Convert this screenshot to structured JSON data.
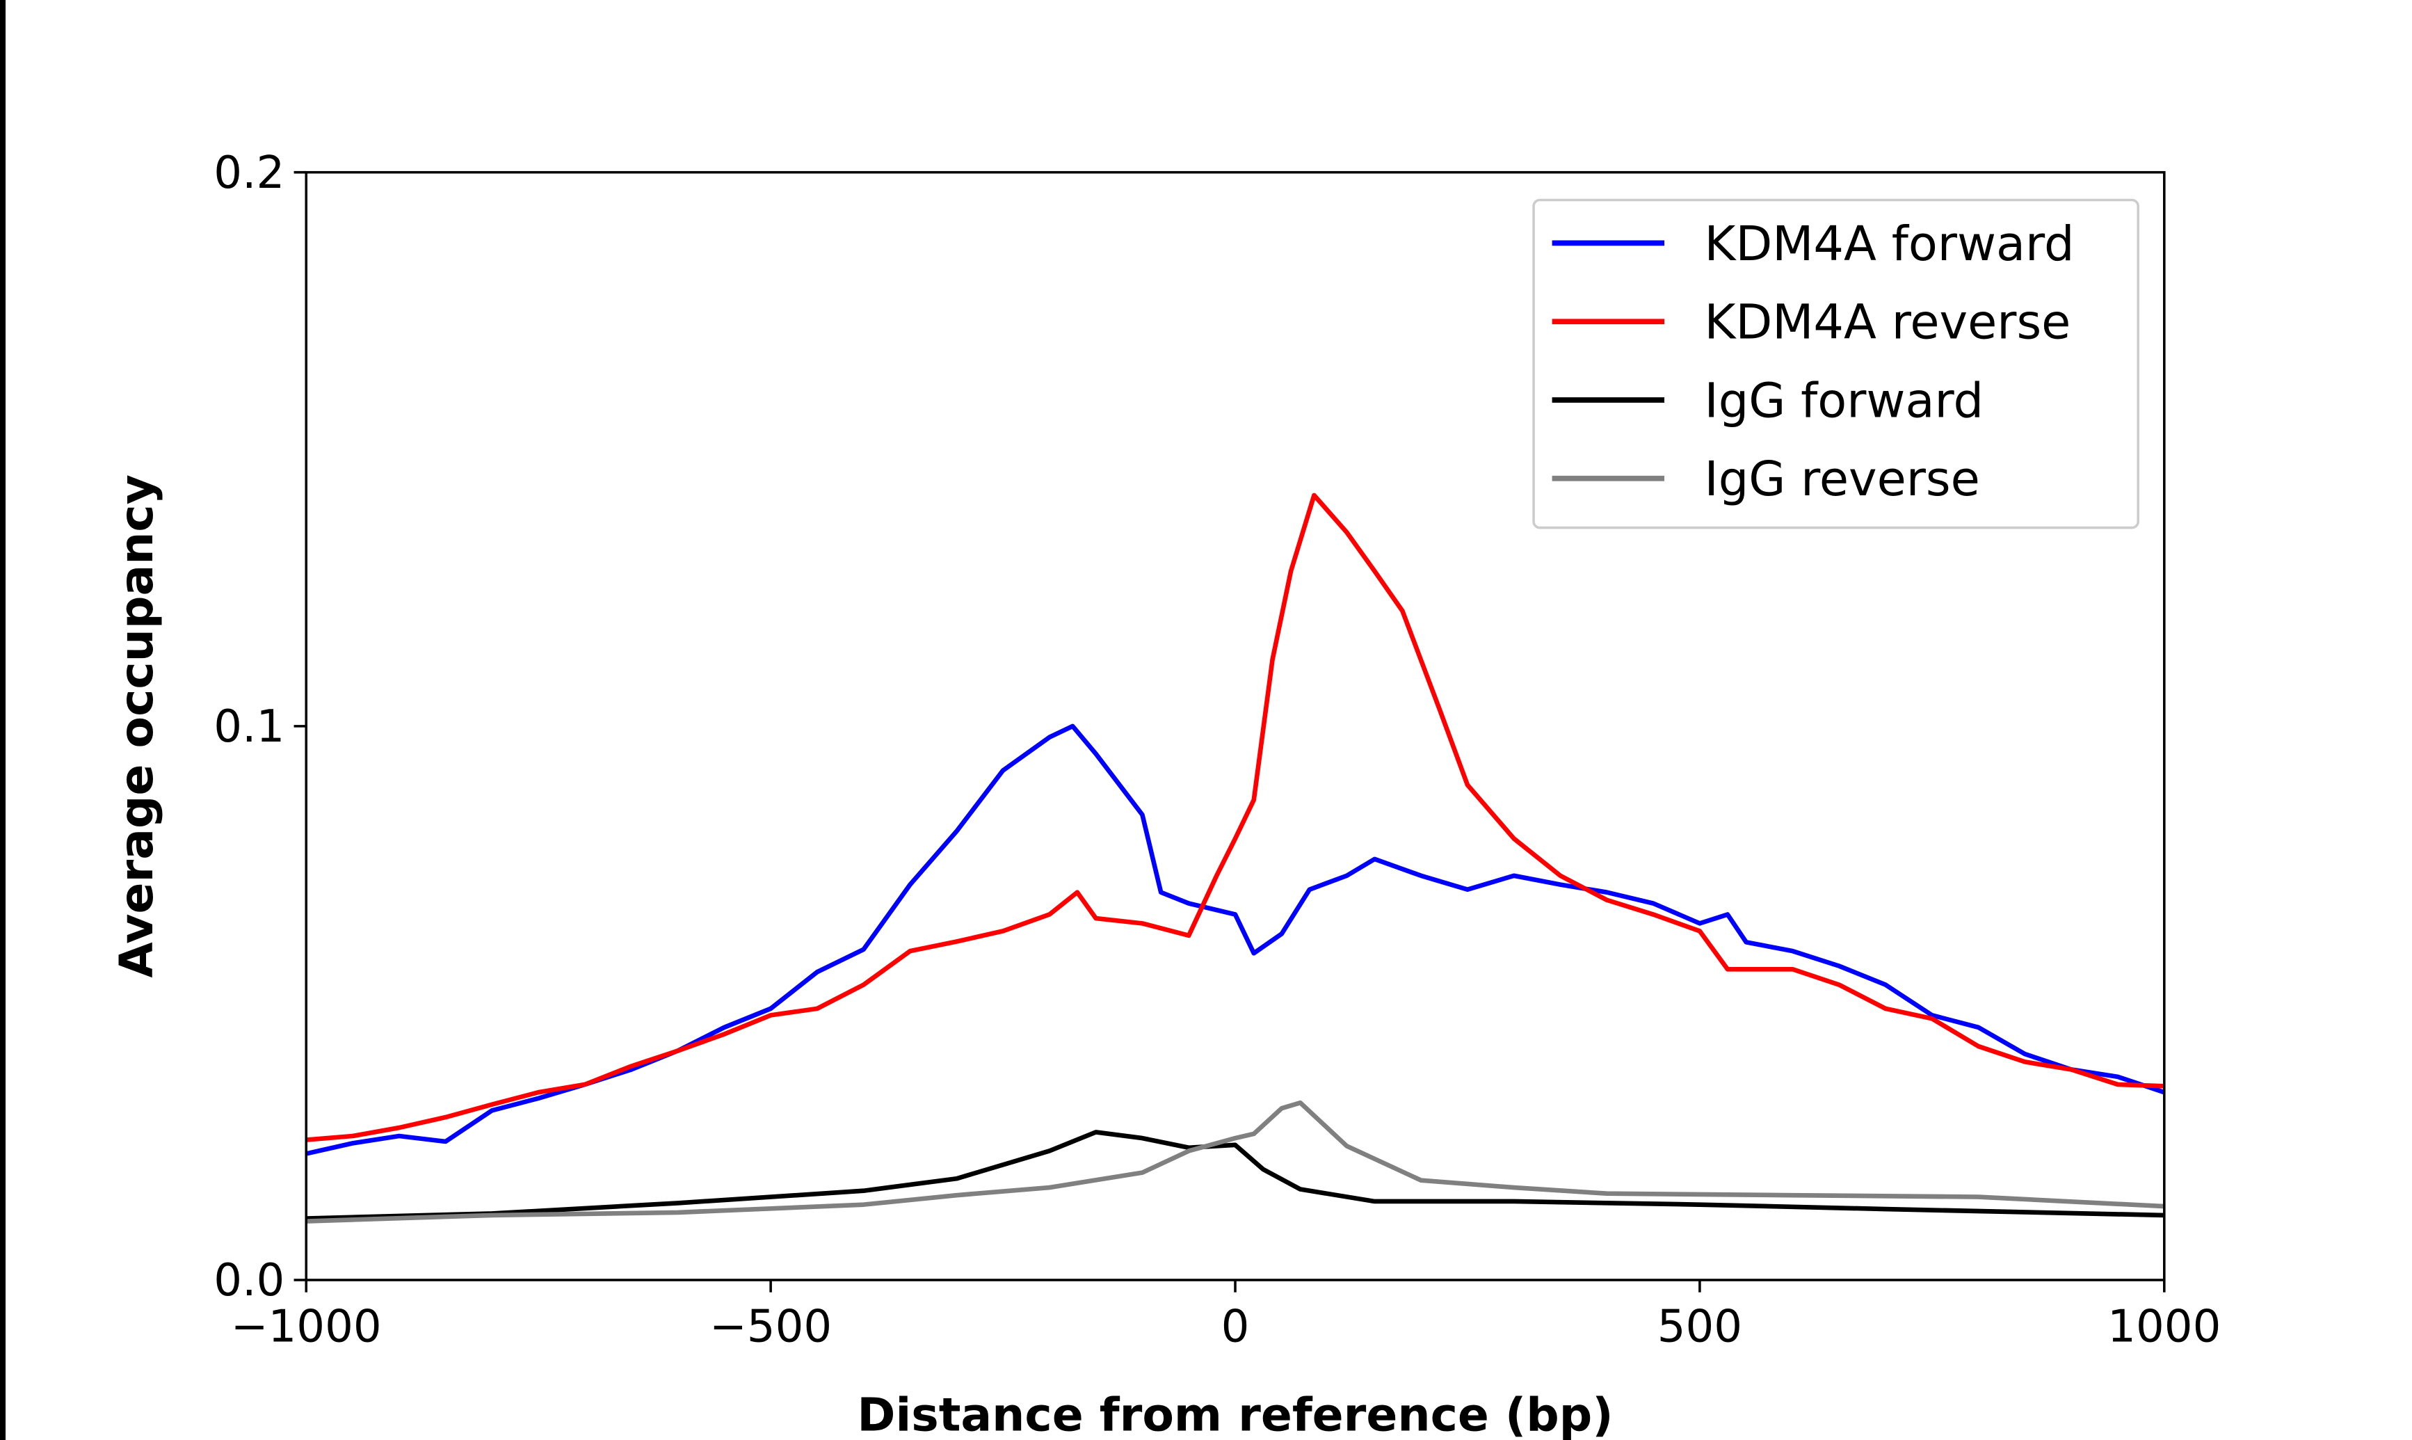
{
  "chart_data": {
    "type": "line",
    "title": "",
    "xlabel": "Distance from reference (bp)",
    "ylabel": "Average occupancy",
    "xlim": [
      -1000,
      1000
    ],
    "ylim": [
      0.0,
      0.2
    ],
    "xticks": [
      "−1000",
      "−500",
      "0",
      "500",
      "1000"
    ],
    "xtick_values": [
      -1000,
      -500,
      0,
      500,
      1000
    ],
    "yticks": [
      "0.0",
      "0.1",
      "0.2"
    ],
    "ytick_values": [
      0.0,
      0.1,
      0.2
    ],
    "grid": false,
    "legend_position": "top-right",
    "series": [
      {
        "name": "KDM4A forward",
        "color": "#0000ff",
        "x": [
          -1000,
          -950,
          -900,
          -850,
          -800,
          -750,
          -700,
          -650,
          -600,
          -550,
          -500,
          -450,
          -400,
          -350,
          -300,
          -250,
          -200,
          -175,
          -150,
          -100,
          -80,
          -50,
          0,
          20,
          50,
          80,
          120,
          150,
          200,
          250,
          300,
          350,
          400,
          450,
          500,
          530,
          550,
          600,
          650,
          700,
          750,
          800,
          850,
          900,
          950,
          1000
        ],
        "y": [
          0.0228,
          0.0247,
          0.026,
          0.025,
          0.0306,
          0.0328,
          0.0353,
          0.038,
          0.0414,
          0.0456,
          0.049,
          0.0556,
          0.0597,
          0.0714,
          0.081,
          0.092,
          0.098,
          0.1,
          0.095,
          0.084,
          0.07,
          0.068,
          0.066,
          0.059,
          0.0625,
          0.0705,
          0.073,
          0.076,
          0.073,
          0.0705,
          0.073,
          0.0714,
          0.07,
          0.068,
          0.0644,
          0.066,
          0.061,
          0.0594,
          0.0567,
          0.0533,
          0.0478,
          0.0456,
          0.0408,
          0.038,
          0.0367,
          0.0339
        ]
      },
      {
        "name": "KDM4A reverse",
        "color": "#ff0000",
        "x": [
          -1000,
          -950,
          -900,
          -850,
          -800,
          -750,
          -700,
          -650,
          -600,
          -550,
          -500,
          -450,
          -400,
          -350,
          -300,
          -250,
          -200,
          -170,
          -150,
          -100,
          -50,
          -20,
          0,
          20,
          40,
          60,
          85,
          120,
          150,
          180,
          220,
          250,
          300,
          350,
          400,
          450,
          500,
          530,
          600,
          650,
          700,
          750,
          800,
          850,
          900,
          950,
          1000
        ],
        "y": [
          0.0253,
          0.026,
          0.0275,
          0.0294,
          0.0317,
          0.0339,
          0.0353,
          0.0386,
          0.0414,
          0.0444,
          0.0478,
          0.049,
          0.0533,
          0.0594,
          0.0611,
          0.063,
          0.066,
          0.07,
          0.0653,
          0.0644,
          0.0622,
          0.073,
          0.0797,
          0.0867,
          0.112,
          0.128,
          0.1417,
          0.135,
          0.128,
          0.1208,
          0.103,
          0.0894,
          0.0797,
          0.073,
          0.0686,
          0.066,
          0.063,
          0.0561,
          0.0561,
          0.0533,
          0.049,
          0.0472,
          0.0422,
          0.0394,
          0.038,
          0.0353,
          0.035
        ]
      },
      {
        "name": "IgG forward",
        "color": "#000000",
        "x": [
          -1000,
          -800,
          -600,
          -400,
          -300,
          -200,
          -150,
          -100,
          -50,
          0,
          30,
          70,
          150,
          300,
          500,
          700,
          1000
        ],
        "y": [
          0.0111,
          0.012,
          0.0139,
          0.0161,
          0.0183,
          0.0233,
          0.0267,
          0.0256,
          0.0239,
          0.0244,
          0.02,
          0.0164,
          0.0142,
          0.0142,
          0.0136,
          0.0128,
          0.0117
        ]
      },
      {
        "name": "IgG reverse",
        "color": "#808080",
        "x": [
          -1000,
          -800,
          -600,
          -400,
          -300,
          -200,
          -100,
          -50,
          0,
          20,
          50,
          70,
          120,
          200,
          300,
          400,
          600,
          800,
          1000
        ],
        "y": [
          0.0106,
          0.0117,
          0.0122,
          0.0136,
          0.0153,
          0.0167,
          0.0194,
          0.0233,
          0.0256,
          0.0264,
          0.031,
          0.032,
          0.0242,
          0.018,
          0.0167,
          0.0156,
          0.0153,
          0.015,
          0.0133
        ]
      }
    ]
  }
}
